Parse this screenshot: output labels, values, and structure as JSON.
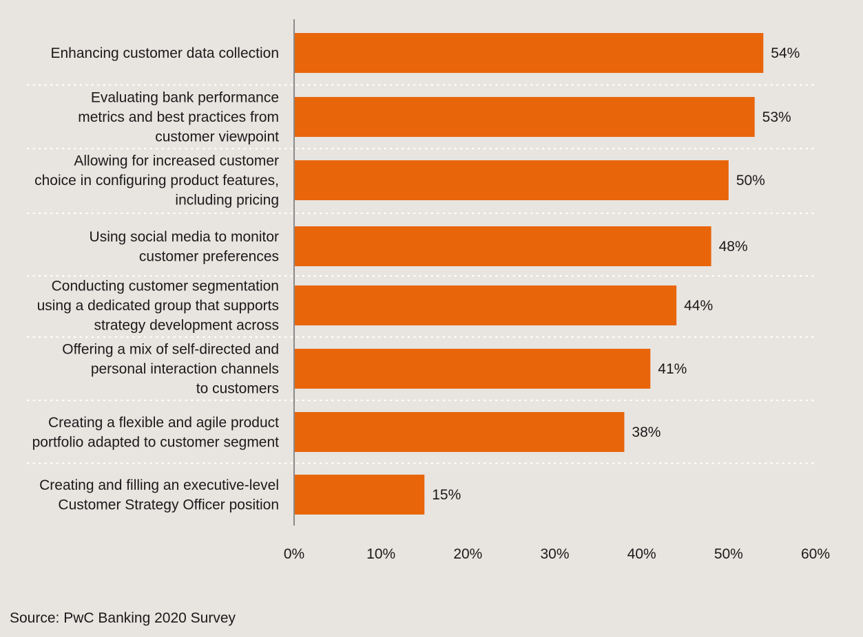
{
  "chart_data": {
    "type": "bar",
    "orientation": "horizontal",
    "categories": [
      [
        "Enhancing customer data collection"
      ],
      [
        "Evaluating bank performance",
        "metrics and best practices from",
        "customer viewpoint"
      ],
      [
        "Allowing for increased customer",
        "choice in configuring product features,",
        "including pricing"
      ],
      [
        "Using social media to monitor",
        "customer preferences"
      ],
      [
        "Conducting customer segmentation",
        "using a dedicated group that supports",
        "strategy development across"
      ],
      [
        "Offering a mix of self-directed and",
        "personal interaction channels",
        "to customers"
      ],
      [
        "Creating a flexible and agile product",
        "portfolio adapted to customer segment"
      ],
      [
        "Creating and filling an executive-level",
        "Customer Strategy Officer position"
      ]
    ],
    "values": [
      54,
      53,
      50,
      48,
      44,
      41,
      38,
      15
    ],
    "value_labels": [
      "54%",
      "53%",
      "50%",
      "48%",
      "44%",
      "41%",
      "38%",
      "15%"
    ],
    "xlim": [
      0,
      60
    ],
    "x_ticks": [
      0,
      10,
      20,
      30,
      40,
      50,
      60
    ],
    "x_tick_labels": [
      "0%",
      "10%",
      "20%",
      "30%",
      "40%",
      "50%",
      "60%"
    ],
    "xlabel": "",
    "ylabel": "",
    "grid": false,
    "bar_color": "#e8650a",
    "axis_color": "#8a8a8a",
    "separator_color": "#ffffff"
  },
  "source": "Source: PwC Banking 2020 Survey"
}
